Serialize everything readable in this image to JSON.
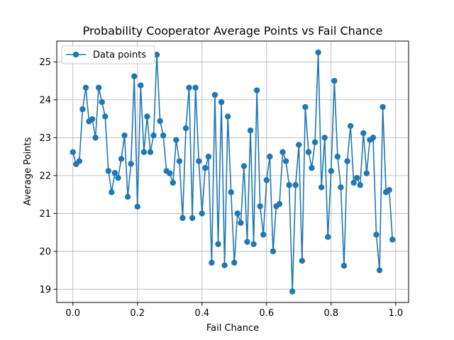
{
  "chart_data": {
    "type": "line",
    "title": "Probability Cooperator Average Points vs Fail Chance",
    "xlabel": "Fail Chance",
    "ylabel": "Average Points",
    "xlim": [
      -0.05,
      1.04
    ],
    "ylim": [
      18.65,
      25.55
    ],
    "xticks": [
      0.0,
      0.2,
      0.4,
      0.6,
      0.8,
      1.0
    ],
    "xtick_labels": [
      "0.0",
      "0.2",
      "0.4",
      "0.6",
      "0.8",
      "1.0"
    ],
    "yticks": [
      19,
      20,
      21,
      22,
      23,
      24,
      25
    ],
    "ytick_labels": [
      "19",
      "20",
      "21",
      "22",
      "23",
      "24",
      "25"
    ],
    "grid": true,
    "legend_position": "upper-left",
    "series": [
      {
        "name": "Data points",
        "color": "#1f77b4",
        "marker": "circle",
        "x": [
          0.0,
          0.01,
          0.02,
          0.03,
          0.04,
          0.05,
          0.06,
          0.07,
          0.08,
          0.09,
          0.1,
          0.11,
          0.12,
          0.13,
          0.14,
          0.15,
          0.16,
          0.17,
          0.18,
          0.19,
          0.2,
          0.21,
          0.22,
          0.23,
          0.24,
          0.25,
          0.26,
          0.27,
          0.28,
          0.29,
          0.3,
          0.31,
          0.32,
          0.33,
          0.34,
          0.35,
          0.36,
          0.37,
          0.38,
          0.39,
          0.4,
          0.41,
          0.42,
          0.43,
          0.44,
          0.45,
          0.46,
          0.47,
          0.48,
          0.49,
          0.5,
          0.51,
          0.52,
          0.53,
          0.54,
          0.55,
          0.56,
          0.57,
          0.58,
          0.59,
          0.6,
          0.61,
          0.62,
          0.63,
          0.64,
          0.65,
          0.66,
          0.67,
          0.68,
          0.69,
          0.7,
          0.71,
          0.72,
          0.73,
          0.74,
          0.75,
          0.76,
          0.77,
          0.78,
          0.79,
          0.8,
          0.81,
          0.82,
          0.83,
          0.84,
          0.85,
          0.86,
          0.87,
          0.88,
          0.89,
          0.9,
          0.91,
          0.92,
          0.93,
          0.94,
          0.95,
          0.96,
          0.97,
          0.98,
          0.99
        ],
        "y": [
          22.62,
          22.3,
          22.38,
          23.75,
          24.32,
          23.43,
          23.49,
          23.0,
          24.32,
          23.94,
          23.56,
          22.12,
          21.56,
          22.07,
          21.94,
          22.44,
          23.06,
          21.44,
          22.31,
          24.62,
          21.18,
          24.38,
          22.62,
          23.56,
          22.62,
          23.06,
          25.19,
          23.44,
          23.06,
          22.12,
          22.06,
          21.81,
          22.94,
          22.38,
          20.88,
          23.25,
          24.32,
          20.88,
          24.32,
          22.38,
          21.0,
          22.2,
          22.5,
          19.7,
          24.13,
          20.19,
          23.94,
          19.63,
          23.56,
          21.56,
          19.7,
          21.0,
          20.75,
          22.25,
          20.25,
          23.19,
          20.19,
          24.25,
          21.19,
          20.44,
          21.88,
          22.5,
          20.0,
          21.19,
          21.25,
          22.62,
          22.38,
          21.75,
          18.94,
          21.75,
          22.81,
          19.75,
          23.81,
          22.62,
          22.2,
          22.88,
          25.25,
          21.69,
          23.0,
          20.38,
          22.12,
          24.5,
          22.5,
          21.69,
          19.62,
          22.38,
          23.31,
          21.81,
          21.94,
          21.75,
          23.12,
          22.06,
          22.94,
          23.0,
          20.44,
          19.5,
          23.81,
          21.56,
          21.62,
          20.31
        ]
      }
    ]
  }
}
